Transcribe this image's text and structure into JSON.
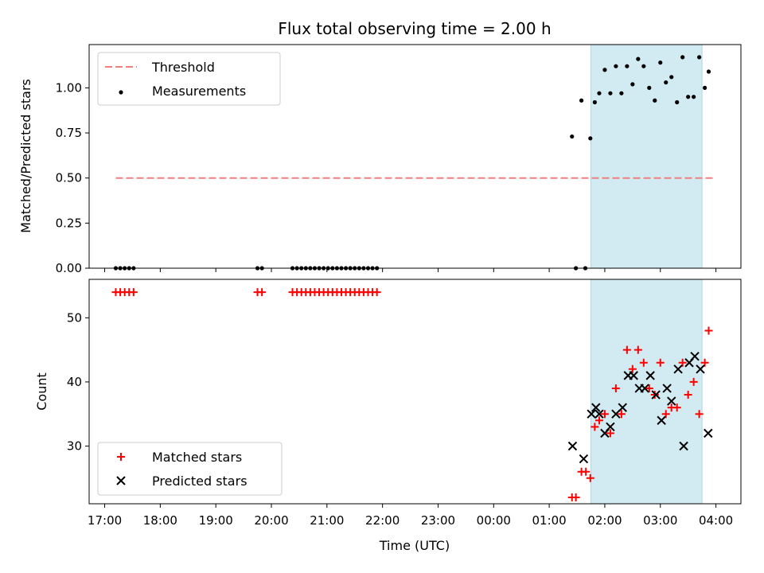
{
  "title": "Flux total observing time = 2.00 h",
  "x_ticks": [
    "17:00",
    "18:00",
    "19:00",
    "20:00",
    "21:00",
    "22:00",
    "23:00",
    "00:00",
    "01:00",
    "02:00",
    "03:00",
    "04:00"
  ],
  "x_tick_hours": [
    17,
    18,
    19,
    20,
    21,
    22,
    23,
    24,
    25,
    26,
    27,
    28
  ],
  "xlabel": "Time (UTC)",
  "xlim": [
    16.72,
    28.45
  ],
  "colors": {
    "threshold": "#f08080",
    "span": "#add8e6",
    "matched": "#ff0000",
    "predicted": "#000000",
    "measure": "#000000"
  },
  "chart_data": [
    {
      "type": "scatter",
      "ylabel": "Matched/Predicted stars",
      "ylim": [
        0,
        1.24
      ],
      "y_ticks": [
        "0.00",
        "0.25",
        "0.50",
        "0.75",
        "1.00"
      ],
      "y_tick_values": [
        0,
        0.25,
        0.5,
        0.75,
        1.0
      ],
      "legend": [
        "Threshold",
        "Measurements"
      ],
      "legend_position": "upper left",
      "span_hours": [
        25.75,
        27.75
      ],
      "threshold": {
        "name": "Threshold",
        "y": 0.5,
        "x_range": [
          17.2,
          28.0
        ]
      },
      "series": [
        {
          "name": "Measurements",
          "x": [
            17.2,
            17.28,
            17.36,
            17.44,
            17.52,
            19.75,
            19.83,
            20.38,
            20.46,
            20.54,
            20.62,
            20.7,
            20.78,
            20.86,
            20.94,
            21.02,
            21.1,
            21.18,
            21.26,
            21.34,
            21.42,
            21.5,
            21.58,
            21.66,
            21.74,
            21.82,
            21.9,
            25.41,
            25.48,
            25.58,
            25.65,
            25.74,
            25.82,
            25.9,
            26.0,
            26.1,
            26.2,
            26.3,
            26.4,
            26.5,
            26.6,
            26.7,
            26.8,
            26.9,
            27.0,
            27.1,
            27.2,
            27.3,
            27.4,
            27.5,
            27.6,
            27.7,
            27.8,
            27.87
          ],
          "y": [
            0,
            0,
            0,
            0,
            0,
            0,
            0,
            0,
            0,
            0,
            0,
            0,
            0,
            0,
            0,
            0,
            0,
            0,
            0,
            0,
            0,
            0,
            0,
            0,
            0,
            0,
            0,
            0.73,
            0.0,
            0.93,
            0.0,
            0.72,
            0.92,
            0.97,
            1.1,
            0.97,
            1.12,
            0.97,
            1.12,
            1.02,
            1.16,
            1.12,
            1.0,
            0.93,
            1.14,
            1.03,
            1.06,
            0.92,
            1.17,
            0.95,
            0.95,
            1.17,
            1.0,
            1.09
          ]
        }
      ]
    },
    {
      "type": "scatter",
      "ylabel": "Count",
      "ylim": [
        21,
        56
      ],
      "y_ticks": [
        "30",
        "40",
        "50"
      ],
      "y_tick_values": [
        30,
        40,
        50
      ],
      "legend": [
        "Matched stars",
        "Predicted stars"
      ],
      "legend_position": "lower left",
      "span_hours": [
        25.75,
        27.75
      ],
      "series": [
        {
          "name": "Matched stars",
          "x": [
            17.2,
            17.28,
            17.36,
            17.44,
            17.52,
            19.75,
            19.83,
            20.38,
            20.46,
            20.54,
            20.62,
            20.7,
            20.78,
            20.86,
            20.94,
            21.02,
            21.1,
            21.18,
            21.26,
            21.34,
            21.42,
            21.5,
            21.58,
            21.66,
            21.74,
            21.82,
            21.9,
            25.41,
            25.48,
            25.58,
            25.66,
            25.74,
            25.82,
            25.9,
            26.0,
            26.1,
            26.2,
            26.3,
            26.4,
            26.5,
            26.6,
            26.7,
            26.8,
            26.9,
            27.0,
            27.1,
            27.2,
            27.3,
            27.4,
            27.5,
            27.6,
            27.7,
            27.8,
            27.87
          ],
          "y": [
            54,
            54,
            54,
            54,
            54,
            54,
            54,
            54,
            54,
            54,
            54,
            54,
            54,
            54,
            54,
            54,
            54,
            54,
            54,
            54,
            54,
            54,
            54,
            54,
            54,
            54,
            54,
            22,
            22,
            26,
            26,
            25,
            33,
            34,
            35,
            32,
            39,
            35,
            45,
            42,
            45,
            43,
            39,
            38,
            43,
            35,
            36,
            36,
            43,
            38,
            40,
            35,
            43,
            48
          ]
        },
        {
          "name": "Predicted stars",
          "x": [
            25.42,
            25.62,
            25.76,
            25.84,
            25.9,
            26.0,
            26.1,
            26.2,
            26.32,
            26.42,
            26.52,
            26.62,
            26.72,
            26.82,
            26.92,
            27.02,
            27.12,
            27.2,
            27.32,
            27.42,
            27.52,
            27.62,
            27.72,
            27.86
          ],
          "y": [
            30,
            28,
            35,
            36,
            35,
            32,
            33,
            35,
            36,
            41,
            41,
            39,
            39,
            41,
            38,
            34,
            39,
            37,
            42,
            30,
            43,
            44,
            42,
            32
          ]
        }
      ]
    }
  ]
}
